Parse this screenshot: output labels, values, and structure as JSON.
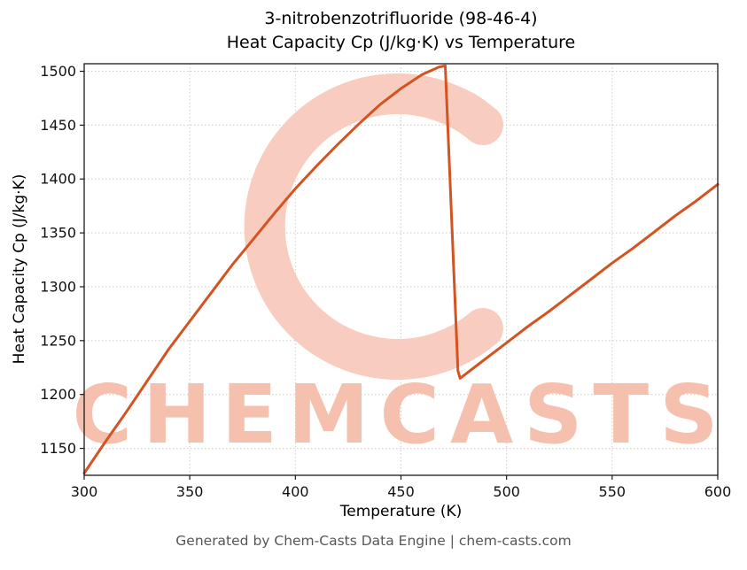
{
  "page": {
    "title_line1": "3-nitrobenzotrifluoride (98-46-4)",
    "title_line2": "Heat Capacity Cp (J/kg·K) vs Temperature",
    "footer": "Generated by Chem-Casts Data Engine | chem-casts.com"
  },
  "watermark": {
    "text": "CHEMCASTS",
    "text_color": "#f6c0ae",
    "logo_color": "#f8cdbf"
  },
  "chart_data": {
    "type": "line",
    "title": "3-nitrobenzotrifluoride (98-46-4) Heat Capacity Cp (J/kg·K) vs Temperature",
    "xlabel": "Temperature (K)",
    "ylabel": "Heat Capacity Cp (J/kg·K)",
    "xlim": [
      300,
      600
    ],
    "ylim": [
      1125,
      1507
    ],
    "x_ticks": [
      300,
      350,
      400,
      450,
      500,
      550,
      600
    ],
    "y_ticks": [
      1150,
      1200,
      1250,
      1300,
      1350,
      1400,
      1450,
      1500
    ],
    "grid": true,
    "grid_color": "#cccccc",
    "line_color": "#d35321",
    "line_width": 3,
    "series": [
      {
        "name": "Heat Capacity Cp (J/kg·K)",
        "points": [
          [
            300,
            1127
          ],
          [
            310,
            1156
          ],
          [
            320,
            1184
          ],
          [
            330,
            1213
          ],
          [
            340,
            1242
          ],
          [
            350,
            1268
          ],
          [
            360,
            1294
          ],
          [
            370,
            1320
          ],
          [
            380,
            1344
          ],
          [
            390,
            1368
          ],
          [
            400,
            1391
          ],
          [
            410,
            1412
          ],
          [
            420,
            1432
          ],
          [
            430,
            1451
          ],
          [
            440,
            1469
          ],
          [
            450,
            1484
          ],
          [
            460,
            1497
          ],
          [
            468,
            1504
          ],
          [
            471,
            1505
          ],
          [
            477,
            1222
          ],
          [
            478,
            1215
          ],
          [
            490,
            1233
          ],
          [
            500,
            1248
          ],
          [
            510,
            1263
          ],
          [
            520,
            1277
          ],
          [
            530,
            1292
          ],
          [
            540,
            1307
          ],
          [
            550,
            1322
          ],
          [
            560,
            1336
          ],
          [
            570,
            1351
          ],
          [
            580,
            1366
          ],
          [
            590,
            1380
          ],
          [
            600,
            1395
          ]
        ]
      }
    ]
  }
}
